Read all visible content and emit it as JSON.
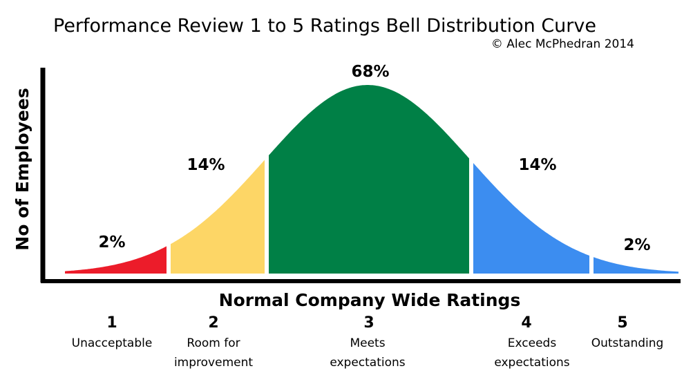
{
  "title": "Performance Review 1 to 5 Ratings Bell Distribution Curve",
  "copyright": "© Alec McPhedran 2014",
  "chart_data": {
    "type": "area",
    "xlabel": "Normal Company Wide Ratings",
    "ylabel": "No of Employees",
    "grid": false,
    "segments": [
      {
        "rating": "1",
        "description": [
          "Unacceptable"
        ],
        "percent_label": "2%",
        "value": 2,
        "color": "#ec1c2a"
      },
      {
        "rating": "2",
        "description": [
          "Room for",
          "improvement"
        ],
        "percent_label": "14%",
        "value": 14,
        "color": "#fdd666"
      },
      {
        "rating": "3",
        "description": [
          "Meets",
          "expectations"
        ],
        "percent_label": "68%",
        "value": 68,
        "color": "#008046"
      },
      {
        "rating": "4",
        "description": [
          "Exceeds",
          "expectations"
        ],
        "percent_label": "14%",
        "value": 14,
        "color": "#3c8df0"
      },
      {
        "rating": "5",
        "description": [
          "Outstanding"
        ],
        "percent_label": "2%",
        "value": 2,
        "color": "#3c8df0"
      }
    ]
  }
}
